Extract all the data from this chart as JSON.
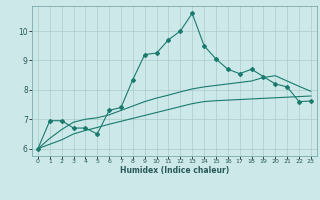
{
  "title": "",
  "xlabel": "Humidex (Indice chaleur)",
  "ylabel": "",
  "bg_color": "#cce8e8",
  "line_color": "#1a7a6e",
  "grid_color": "#aacccc",
  "xlim": [
    -0.5,
    23.5
  ],
  "ylim": [
    5.75,
    10.85
  ],
  "xticks": [
    0,
    1,
    2,
    3,
    4,
    5,
    6,
    7,
    8,
    9,
    10,
    11,
    12,
    13,
    14,
    15,
    16,
    17,
    18,
    19,
    20,
    21,
    22,
    23
  ],
  "yticks": [
    6,
    7,
    8,
    9,
    10
  ],
  "series1_x": [
    0,
    1,
    2,
    3,
    4,
    5,
    6,
    7,
    8,
    9,
    10,
    11,
    12,
    13,
    14,
    15,
    16,
    17,
    18,
    19,
    20,
    21,
    22,
    23
  ],
  "series1_y": [
    6.0,
    6.95,
    6.95,
    6.7,
    6.7,
    6.5,
    7.3,
    7.4,
    8.35,
    9.2,
    9.25,
    9.7,
    10.0,
    10.6,
    9.5,
    9.05,
    8.7,
    8.55,
    8.7,
    8.45,
    8.2,
    8.1,
    7.6,
    7.62
  ],
  "series2_x": [
    0,
    1,
    2,
    3,
    4,
    5,
    6,
    7,
    8,
    9,
    10,
    11,
    12,
    13,
    14,
    15,
    16,
    17,
    18,
    19,
    20,
    21,
    22,
    23
  ],
  "series2_y": [
    6.0,
    6.35,
    6.65,
    6.9,
    7.0,
    7.05,
    7.15,
    7.3,
    7.45,
    7.6,
    7.72,
    7.82,
    7.93,
    8.03,
    8.1,
    8.15,
    8.2,
    8.25,
    8.3,
    8.42,
    8.48,
    8.3,
    8.12,
    7.95
  ],
  "series3_x": [
    0,
    1,
    2,
    3,
    4,
    5,
    6,
    7,
    8,
    9,
    10,
    11,
    12,
    13,
    14,
    15,
    16,
    17,
    18,
    19,
    20,
    21,
    22,
    23
  ],
  "series3_y": [
    6.0,
    6.15,
    6.3,
    6.5,
    6.62,
    6.72,
    6.83,
    6.93,
    7.03,
    7.13,
    7.23,
    7.33,
    7.43,
    7.53,
    7.6,
    7.63,
    7.65,
    7.67,
    7.69,
    7.71,
    7.73,
    7.75,
    7.77,
    7.79
  ]
}
